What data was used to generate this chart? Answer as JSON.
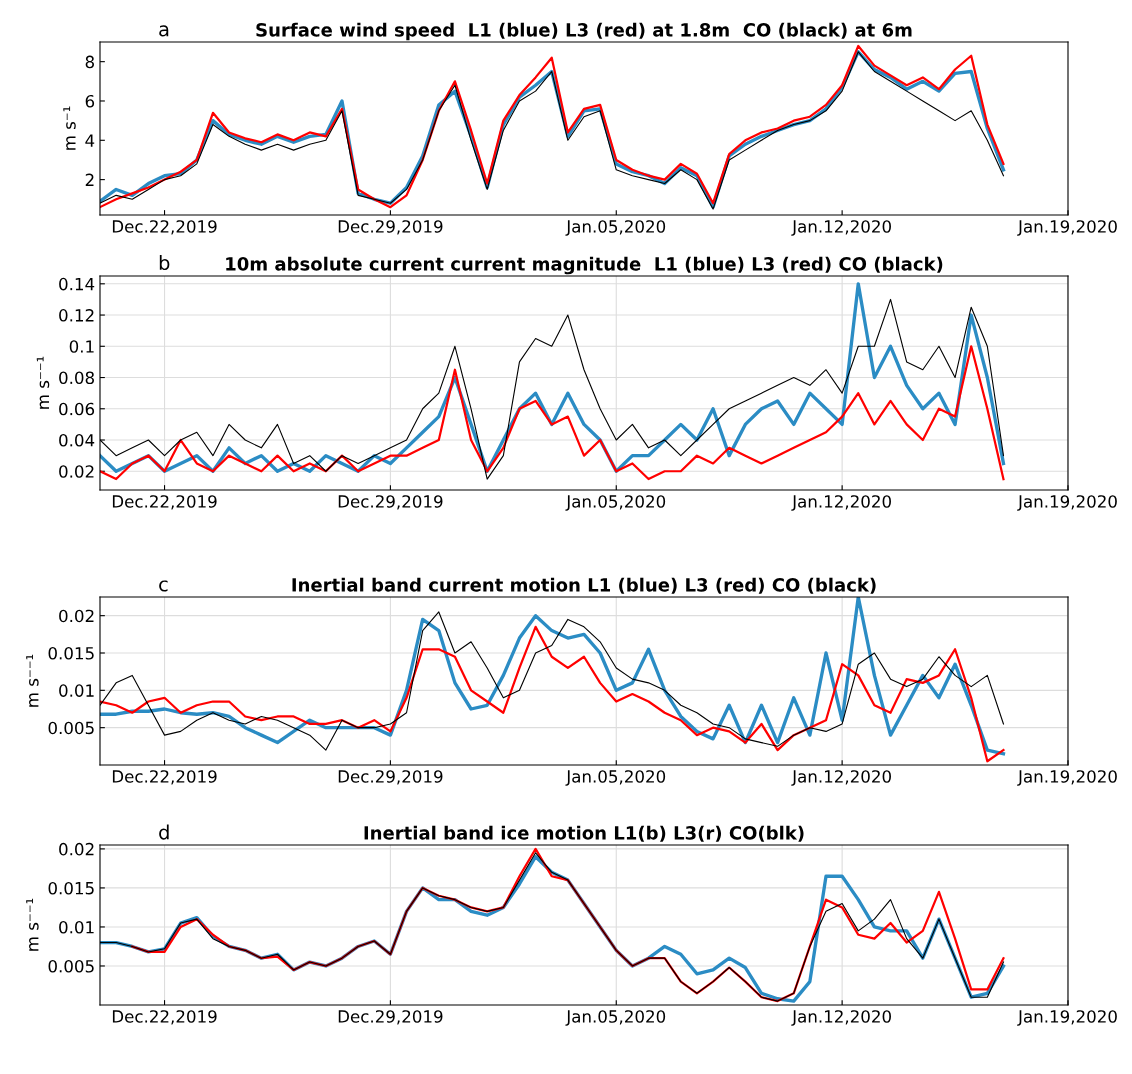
{
  "chart_data": [
    {
      "type": "line",
      "title": "Surface wind speed  L1 (blue) L3 (red) at 1.8m  CO (black) at 6m",
      "annotations": [
        "a"
      ],
      "ylabel": "m s⁻¹",
      "grid": false,
      "line_style": "solid",
      "marker": "none",
      "x": [
        "2019-12-20T00:00",
        "2019-12-20T12:00",
        "2019-12-21T00:00",
        "2019-12-21T12:00",
        "2019-12-22T00:00",
        "2019-12-22T12:00",
        "2019-12-23T00:00",
        "2019-12-23T12:00",
        "2019-12-24T00:00",
        "2019-12-24T12:00",
        "2019-12-25T00:00",
        "2019-12-25T12:00",
        "2019-12-26T00:00",
        "2019-12-26T12:00",
        "2019-12-27T00:00",
        "2019-12-27T12:00",
        "2019-12-28T00:00",
        "2019-12-28T12:00",
        "2019-12-29T00:00",
        "2019-12-29T12:00",
        "2019-12-30T00:00",
        "2019-12-30T12:00",
        "2019-12-31T00:00",
        "2019-12-31T12:00",
        "2020-01-01T00:00",
        "2020-01-01T12:00",
        "2020-01-02T00:00",
        "2020-01-02T12:00",
        "2020-01-03T00:00",
        "2020-01-03T12:00",
        "2020-01-04T00:00",
        "2020-01-04T12:00",
        "2020-01-05T00:00",
        "2020-01-05T12:00",
        "2020-01-06T00:00",
        "2020-01-06T12:00",
        "2020-01-07T00:00",
        "2020-01-07T12:00",
        "2020-01-08T00:00",
        "2020-01-08T12:00",
        "2020-01-09T00:00",
        "2020-01-09T12:00",
        "2020-01-10T00:00",
        "2020-01-10T12:00",
        "2020-01-11T00:00",
        "2020-01-11T12:00",
        "2020-01-12T00:00",
        "2020-01-12T12:00",
        "2020-01-13T00:00",
        "2020-01-13T12:00",
        "2020-01-14T00:00",
        "2020-01-14T12:00",
        "2020-01-15T00:00",
        "2020-01-15T12:00",
        "2020-01-16T00:00",
        "2020-01-16T12:00",
        "2020-01-17T00:00"
      ],
      "xlim": [
        "2019-12-20T00:00",
        "2020-01-19T00:00"
      ],
      "xticks": [
        {
          "value": "2019-12-22",
          "label": "Dec.22,2019"
        },
        {
          "value": "2019-12-29",
          "label": "Dec.29,2019"
        },
        {
          "value": "2020-01-05",
          "label": "Jan.05,2020"
        },
        {
          "value": "2020-01-12",
          "label": "Jan.12,2020"
        },
        {
          "value": "2020-01-19",
          "label": "Jan.19,2020"
        }
      ],
      "ylim": [
        0.2,
        9
      ],
      "yticks": [
        2,
        4,
        6,
        8
      ],
      "series": [
        {
          "color": "#2b8cc4",
          "values": [
            0.9,
            1.5,
            1.2,
            1.8,
            2.2,
            2.3,
            3.0,
            5.0,
            4.3,
            4.0,
            3.8,
            4.2,
            3.9,
            4.2,
            4.3,
            6.0,
            1.3,
            1.0,
            0.8,
            1.6,
            3.2,
            5.8,
            6.5,
            4.2,
            1.6,
            4.8,
            6.2,
            6.8,
            7.5,
            4.2,
            5.5,
            5.6,
            2.8,
            2.4,
            2.2,
            1.8,
            2.6,
            2.2,
            0.6,
            3.2,
            3.8,
            4.2,
            4.5,
            4.8,
            5.0,
            5.6,
            6.7,
            8.5,
            7.6,
            7.2,
            6.6,
            7.0,
            6.5,
            7.4,
            7.5,
            4.6,
            2.5
          ]
        },
        {
          "color": "#ff0000",
          "values": [
            0.6,
            1.0,
            1.3,
            1.6,
            2.0,
            2.4,
            3.0,
            5.4,
            4.4,
            4.1,
            3.9,
            4.3,
            4.0,
            4.4,
            4.2,
            5.6,
            1.5,
            1.0,
            0.6,
            1.2,
            3.0,
            5.5,
            7.0,
            4.5,
            1.8,
            5.0,
            6.3,
            7.2,
            8.2,
            4.4,
            5.6,
            5.8,
            3.0,
            2.5,
            2.2,
            2.0,
            2.8,
            2.3,
            0.8,
            3.3,
            4.0,
            4.4,
            4.6,
            5.0,
            5.2,
            5.8,
            6.8,
            8.8,
            7.8,
            7.3,
            6.8,
            7.2,
            6.6,
            7.6,
            8.3,
            4.8,
            2.8
          ]
        },
        {
          "color": "#000000",
          "values": [
            0.8,
            1.2,
            1.0,
            1.5,
            2.0,
            2.2,
            2.8,
            4.8,
            4.2,
            3.8,
            3.5,
            3.8,
            3.5,
            3.8,
            4.0,
            5.5,
            1.2,
            1.0,
            0.8,
            1.5,
            3.0,
            5.5,
            6.8,
            4.0,
            1.5,
            4.5,
            6.0,
            6.5,
            7.5,
            4.0,
            5.2,
            5.5,
            2.5,
            2.2,
            2.0,
            1.8,
            2.5,
            2.0,
            0.5,
            3.0,
            3.5,
            4.0,
            4.5,
            4.8,
            5.0,
            5.5,
            6.5,
            8.5,
            7.5,
            7.0,
            6.5,
            6.0,
            5.5,
            5.0,
            5.5,
            4.0,
            2.2
          ]
        }
      ]
    },
    {
      "type": "line",
      "title": "10m absolute current current magnitude  L1 (blue) L3 (red) CO (black)",
      "annotations": [
        "b"
      ],
      "ylabel": "m s⁻⁻¹",
      "grid": true,
      "line_style": "solid",
      "marker": "none",
      "x": [
        "2019-12-20T00:00",
        "2019-12-20T12:00",
        "2019-12-21T00:00",
        "2019-12-21T12:00",
        "2019-12-22T00:00",
        "2019-12-22T12:00",
        "2019-12-23T00:00",
        "2019-12-23T12:00",
        "2019-12-24T00:00",
        "2019-12-24T12:00",
        "2019-12-25T00:00",
        "2019-12-25T12:00",
        "2019-12-26T00:00",
        "2019-12-26T12:00",
        "2019-12-27T00:00",
        "2019-12-27T12:00",
        "2019-12-28T00:00",
        "2019-12-28T12:00",
        "2019-12-29T00:00",
        "2019-12-29T12:00",
        "2019-12-30T00:00",
        "2019-12-30T12:00",
        "2019-12-31T00:00",
        "2019-12-31T12:00",
        "2020-01-01T00:00",
        "2020-01-01T12:00",
        "2020-01-02T00:00",
        "2020-01-02T12:00",
        "2020-01-03T00:00",
        "2020-01-03T12:00",
        "2020-01-04T00:00",
        "2020-01-04T12:00",
        "2020-01-05T00:00",
        "2020-01-05T12:00",
        "2020-01-06T00:00",
        "2020-01-06T12:00",
        "2020-01-07T00:00",
        "2020-01-07T12:00",
        "2020-01-08T00:00",
        "2020-01-08T12:00",
        "2020-01-09T00:00",
        "2020-01-09T12:00",
        "2020-01-10T00:00",
        "2020-01-10T12:00",
        "2020-01-11T00:00",
        "2020-01-11T12:00",
        "2020-01-12T00:00",
        "2020-01-12T12:00",
        "2020-01-13T00:00",
        "2020-01-13T12:00",
        "2020-01-14T00:00",
        "2020-01-14T12:00",
        "2020-01-15T00:00",
        "2020-01-15T12:00",
        "2020-01-16T00:00",
        "2020-01-16T12:00",
        "2020-01-17T00:00"
      ],
      "xlim": [
        "2019-12-20T00:00",
        "2020-01-19T00:00"
      ],
      "xticks": [
        {
          "value": "2019-12-22",
          "label": "Dec.22,2019"
        },
        {
          "value": "2019-12-29",
          "label": "Dec.29,2019"
        },
        {
          "value": "2020-01-05",
          "label": "Jan.05,2020"
        },
        {
          "value": "2020-01-12",
          "label": "Jan.12,2020"
        },
        {
          "value": "2020-01-19",
          "label": "Jan.19,2020"
        }
      ],
      "ylim": [
        0.008,
        0.145
      ],
      "yticks": [
        0.02,
        0.04,
        0.06,
        0.08,
        0.1,
        0.12,
        0.14
      ],
      "series": [
        {
          "color": "#2b8cc4",
          "values": [
            0.03,
            0.02,
            0.025,
            0.03,
            0.02,
            0.025,
            0.03,
            0.02,
            0.035,
            0.025,
            0.03,
            0.02,
            0.025,
            0.02,
            0.03,
            0.025,
            0.02,
            0.03,
            0.025,
            0.035,
            0.045,
            0.055,
            0.08,
            0.05,
            0.02,
            0.04,
            0.06,
            0.07,
            0.05,
            0.07,
            0.05,
            0.04,
            0.02,
            0.03,
            0.03,
            0.04,
            0.05,
            0.04,
            0.06,
            0.03,
            0.05,
            0.06,
            0.065,
            0.05,
            0.07,
            0.06,
            0.05,
            0.14,
            0.08,
            0.1,
            0.075,
            0.06,
            0.07,
            0.05,
            0.12,
            0.08,
            0.025
          ]
        },
        {
          "color": "#ff0000",
          "values": [
            0.02,
            0.015,
            0.025,
            0.03,
            0.02,
            0.04,
            0.025,
            0.02,
            0.03,
            0.025,
            0.02,
            0.03,
            0.02,
            0.025,
            0.02,
            0.03,
            0.02,
            0.025,
            0.03,
            0.03,
            0.035,
            0.04,
            0.085,
            0.04,
            0.02,
            0.035,
            0.06,
            0.065,
            0.05,
            0.055,
            0.03,
            0.04,
            0.02,
            0.025,
            0.015,
            0.02,
            0.02,
            0.03,
            0.025,
            0.035,
            0.03,
            0.025,
            0.03,
            0.035,
            0.04,
            0.045,
            0.055,
            0.07,
            0.05,
            0.065,
            0.05,
            0.04,
            0.06,
            0.055,
            0.1,
            0.06,
            0.015
          ]
        },
        {
          "color": "#000000",
          "values": [
            0.04,
            0.03,
            0.035,
            0.04,
            0.03,
            0.04,
            0.045,
            0.03,
            0.05,
            0.04,
            0.035,
            0.05,
            0.025,
            0.03,
            0.02,
            0.03,
            0.025,
            0.03,
            0.035,
            0.04,
            0.06,
            0.07,
            0.1,
            0.06,
            0.015,
            0.03,
            0.09,
            0.105,
            0.1,
            0.12,
            0.085,
            0.06,
            0.04,
            0.05,
            0.035,
            0.04,
            0.03,
            0.04,
            0.05,
            0.06,
            0.065,
            0.07,
            0.075,
            0.08,
            0.075,
            0.085,
            0.07,
            0.1,
            0.1,
            0.13,
            0.09,
            0.085,
            0.1,
            0.08,
            0.125,
            0.1,
            0.03
          ]
        }
      ]
    },
    {
      "type": "line",
      "title": "Inertial band current motion L1 (blue) L3 (red) CO (black)",
      "annotations": [
        "c"
      ],
      "ylabel": "m s⁻⁻¹",
      "grid": true,
      "line_style": "solid",
      "marker": "none",
      "x": [
        "2019-12-20T00:00",
        "2019-12-20T12:00",
        "2019-12-21T00:00",
        "2019-12-21T12:00",
        "2019-12-22T00:00",
        "2019-12-22T12:00",
        "2019-12-23T00:00",
        "2019-12-23T12:00",
        "2019-12-24T00:00",
        "2019-12-24T12:00",
        "2019-12-25T00:00",
        "2019-12-25T12:00",
        "2019-12-26T00:00",
        "2019-12-26T12:00",
        "2019-12-27T00:00",
        "2019-12-27T12:00",
        "2019-12-28T00:00",
        "2019-12-28T12:00",
        "2019-12-29T00:00",
        "2019-12-29T12:00",
        "2019-12-30T00:00",
        "2019-12-30T12:00",
        "2019-12-31T00:00",
        "2019-12-31T12:00",
        "2020-01-01T00:00",
        "2020-01-01T12:00",
        "2020-01-02T00:00",
        "2020-01-02T12:00",
        "2020-01-03T00:00",
        "2020-01-03T12:00",
        "2020-01-04T00:00",
        "2020-01-04T12:00",
        "2020-01-05T00:00",
        "2020-01-05T12:00",
        "2020-01-06T00:00",
        "2020-01-06T12:00",
        "2020-01-07T00:00",
        "2020-01-07T12:00",
        "2020-01-08T00:00",
        "2020-01-08T12:00",
        "2020-01-09T00:00",
        "2020-01-09T12:00",
        "2020-01-10T00:00",
        "2020-01-10T12:00",
        "2020-01-11T00:00",
        "2020-01-11T12:00",
        "2020-01-12T00:00",
        "2020-01-12T12:00",
        "2020-01-13T00:00",
        "2020-01-13T12:00",
        "2020-01-14T00:00",
        "2020-01-14T12:00",
        "2020-01-15T00:00",
        "2020-01-15T12:00",
        "2020-01-16T00:00",
        "2020-01-16T12:00",
        "2020-01-17T00:00"
      ],
      "xlim": [
        "2019-12-20T00:00",
        "2020-01-19T00:00"
      ],
      "xticks": [
        {
          "value": "2019-12-22",
          "label": "Dec.22,2019"
        },
        {
          "value": "2019-12-29",
          "label": "Dec.29,2019"
        },
        {
          "value": "2020-01-05",
          "label": "Jan.05,2020"
        },
        {
          "value": "2020-01-12",
          "label": "Jan.12,2020"
        },
        {
          "value": "2020-01-19",
          "label": "Jan.19,2020"
        }
      ],
      "ylim": [
        0,
        0.0225
      ],
      "yticks": [
        0.005,
        0.01,
        0.015,
        0.02
      ],
      "series": [
        {
          "color": "#2b8cc4",
          "values": [
            0.0068,
            0.0068,
            0.0072,
            0.0072,
            0.0075,
            0.007,
            0.0068,
            0.007,
            0.0065,
            0.005,
            0.004,
            0.003,
            0.0045,
            0.006,
            0.005,
            0.005,
            0.005,
            0.005,
            0.004,
            0.01,
            0.0195,
            0.018,
            0.011,
            0.0075,
            0.008,
            0.012,
            0.017,
            0.02,
            0.018,
            0.017,
            0.0175,
            0.015,
            0.01,
            0.011,
            0.0155,
            0.01,
            0.0065,
            0.0045,
            0.0035,
            0.008,
            0.003,
            0.008,
            0.003,
            0.009,
            0.004,
            0.015,
            0.006,
            0.0225,
            0.012,
            0.004,
            0.008,
            0.012,
            0.009,
            0.0135,
            0.008,
            0.002,
            0.0015
          ]
        },
        {
          "color": "#ff0000",
          "values": [
            0.0085,
            0.008,
            0.007,
            0.0085,
            0.009,
            0.007,
            0.008,
            0.0085,
            0.0085,
            0.0065,
            0.006,
            0.0065,
            0.0065,
            0.0055,
            0.0055,
            0.006,
            0.005,
            0.006,
            0.0045,
            0.009,
            0.0155,
            0.0155,
            0.0145,
            0.01,
            0.0085,
            0.007,
            0.013,
            0.0185,
            0.0145,
            0.013,
            0.0145,
            0.011,
            0.0085,
            0.0095,
            0.0085,
            0.007,
            0.006,
            0.004,
            0.005,
            0.0045,
            0.003,
            0.0055,
            0.002,
            0.004,
            0.005,
            0.006,
            0.0135,
            0.012,
            0.008,
            0.007,
            0.0115,
            0.011,
            0.012,
            0.0155,
            0.009,
            0.0005,
            0.002
          ]
        },
        {
          "color": "#000000",
          "values": [
            0.008,
            0.011,
            0.012,
            0.008,
            0.004,
            0.0045,
            0.006,
            0.007,
            0.006,
            0.0055,
            0.0065,
            0.006,
            0.005,
            0.004,
            0.002,
            0.006,
            0.005,
            0.005,
            0.0055,
            0.007,
            0.018,
            0.0205,
            0.015,
            0.0165,
            0.013,
            0.009,
            0.01,
            0.015,
            0.016,
            0.0195,
            0.0185,
            0.0165,
            0.013,
            0.0115,
            0.011,
            0.01,
            0.008,
            0.007,
            0.0055,
            0.005,
            0.0035,
            0.003,
            0.0025,
            0.004,
            0.005,
            0.0045,
            0.0055,
            0.0135,
            0.015,
            0.0115,
            0.0105,
            0.0115,
            0.0145,
            0.012,
            0.0105,
            0.012,
            0.0055
          ]
        }
      ]
    },
    {
      "type": "line",
      "title": "Inertial band ice motion L1(b) L3(r) CO(blk)",
      "annotations": [
        "d"
      ],
      "ylabel": "m s⁻⁻¹",
      "grid": true,
      "line_style": "solid",
      "marker": "none",
      "x": [
        "2019-12-20T00:00",
        "2019-12-20T12:00",
        "2019-12-21T00:00",
        "2019-12-21T12:00",
        "2019-12-22T00:00",
        "2019-12-22T12:00",
        "2019-12-23T00:00",
        "2019-12-23T12:00",
        "2019-12-24T00:00",
        "2019-12-24T12:00",
        "2019-12-25T00:00",
        "2019-12-25T12:00",
        "2019-12-26T00:00",
        "2019-12-26T12:00",
        "2019-12-27T00:00",
        "2019-12-27T12:00",
        "2019-12-28T00:00",
        "2019-12-28T12:00",
        "2019-12-29T00:00",
        "2019-12-29T12:00",
        "2019-12-30T00:00",
        "2019-12-30T12:00",
        "2019-12-31T00:00",
        "2019-12-31T12:00",
        "2020-01-01T00:00",
        "2020-01-01T12:00",
        "2020-01-02T00:00",
        "2020-01-02T12:00",
        "2020-01-03T00:00",
        "2020-01-03T12:00",
        "2020-01-04T00:00",
        "2020-01-04T12:00",
        "2020-01-05T00:00",
        "2020-01-05T12:00",
        "2020-01-06T00:00",
        "2020-01-06T12:00",
        "2020-01-07T00:00",
        "2020-01-07T12:00",
        "2020-01-08T00:00",
        "2020-01-08T12:00",
        "2020-01-09T00:00",
        "2020-01-09T12:00",
        "2020-01-10T00:00",
        "2020-01-10T12:00",
        "2020-01-11T00:00",
        "2020-01-11T12:00",
        "2020-01-12T00:00",
        "2020-01-12T12:00",
        "2020-01-13T00:00",
        "2020-01-13T12:00",
        "2020-01-14T00:00",
        "2020-01-14T12:00",
        "2020-01-15T00:00",
        "2020-01-15T12:00",
        "2020-01-16T00:00",
        "2020-01-16T12:00",
        "2020-01-17T00:00"
      ],
      "xlim": [
        "2019-12-20T00:00",
        "2020-01-19T00:00"
      ],
      "xticks": [
        {
          "value": "2019-12-22",
          "label": "Dec.22,2019"
        },
        {
          "value": "2019-12-29",
          "label": "Dec.29,2019"
        },
        {
          "value": "2020-01-05",
          "label": "Jan.05,2020"
        },
        {
          "value": "2020-01-12",
          "label": "Jan.12,2020"
        },
        {
          "value": "2020-01-19",
          "label": "Jan.19,2020"
        }
      ],
      "ylim": [
        0,
        0.0205
      ],
      "yticks": [
        0.005,
        0.01,
        0.015,
        0.02
      ],
      "series": [
        {
          "color": "#2b8cc4",
          "values": [
            0.008,
            0.008,
            0.0075,
            0.0068,
            0.0072,
            0.0105,
            0.0112,
            0.0088,
            0.0075,
            0.007,
            0.006,
            0.0065,
            0.0045,
            0.0055,
            0.005,
            0.006,
            0.0075,
            0.0082,
            0.0065,
            0.012,
            0.015,
            0.0135,
            0.0135,
            0.012,
            0.0115,
            0.0125,
            0.0155,
            0.019,
            0.017,
            0.016,
            0.013,
            0.01,
            0.007,
            0.005,
            0.006,
            0.0075,
            0.0065,
            0.004,
            0.0045,
            0.006,
            0.0048,
            0.0015,
            0.0008,
            0.0005,
            0.003,
            0.0165,
            0.0165,
            0.0135,
            0.01,
            0.0095,
            0.0095,
            0.006,
            0.011,
            0.006,
            0.001,
            0.0015,
            0.005
          ]
        },
        {
          "color": "#ff0000",
          "values": [
            null,
            null,
            0.0075,
            0.0068,
            0.0068,
            0.01,
            0.011,
            0.009,
            0.0075,
            0.007,
            0.006,
            0.0062,
            0.0045,
            0.0055,
            0.005,
            0.006,
            0.0075,
            0.0082,
            0.0065,
            0.012,
            0.015,
            0.014,
            0.0135,
            0.0125,
            0.012,
            0.0125,
            0.0165,
            0.02,
            0.0165,
            0.016,
            0.013,
            0.01,
            0.007,
            0.005,
            0.006,
            0.006,
            0.003,
            0.0015,
            0.003,
            0.0048,
            0.003,
            0.001,
            0.0005,
            0.0015,
            0.0075,
            0.0135,
            0.0125,
            0.009,
            0.0085,
            0.0105,
            0.008,
            0.0095,
            0.0145,
            0.0085,
            0.002,
            0.002,
            0.006
          ]
        },
        {
          "color": "#000000",
          "values": [
            0.008,
            0.008,
            0.0075,
            0.0068,
            0.0072,
            0.0105,
            0.011,
            0.0085,
            0.0075,
            0.007,
            0.006,
            0.0065,
            0.0045,
            0.0055,
            0.005,
            0.006,
            0.0075,
            0.0082,
            0.0065,
            0.012,
            0.015,
            0.014,
            0.0135,
            0.0125,
            0.012,
            0.0125,
            0.016,
            0.0195,
            0.017,
            0.016,
            0.013,
            0.01,
            0.007,
            0.005,
            0.006,
            0.006,
            0.003,
            0.0015,
            0.003,
            0.0048,
            0.003,
            0.001,
            0.0005,
            0.0015,
            0.0075,
            0.012,
            0.013,
            0.0095,
            0.011,
            0.0135,
            0.0085,
            0.006,
            0.011,
            0.006,
            0.001,
            0.001,
            0.0055
          ]
        }
      ]
    }
  ]
}
